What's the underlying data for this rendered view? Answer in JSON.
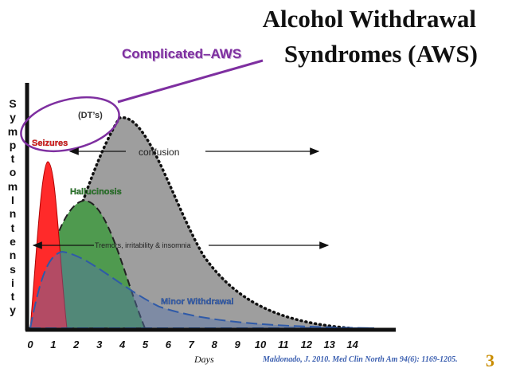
{
  "title": {
    "line1": "Alcohol Withdrawal",
    "line2": "Syndromes (AWS)"
  },
  "complicated_label": "Complicated–AWS",
  "dts_label": "(DT’s)",
  "y_axis_label": [
    "S",
    "y",
    "m",
    "p",
    "t",
    "o",
    "m",
    "I",
    "n",
    "t",
    "e",
    "n",
    "s",
    "i",
    "t",
    "y"
  ],
  "x_axis": {
    "label": "Days",
    "ticks": [
      "0",
      "1",
      "2",
      "3",
      "4",
      "5",
      "6",
      "7",
      "8",
      "9",
      "10",
      "11",
      "12",
      "13",
      "14"
    ]
  },
  "labels": {
    "seizures": "Seizures",
    "confusion": "confusion",
    "hallucinosis": "Hallucinosis",
    "tremors": "Tremors, irritability & insomnia",
    "minor": "Minor Withdrawal"
  },
  "citation": "Maldonado, J. 2010. Med Clin North Am 94(6): 1169-1205.",
  "page_number": "3",
  "colors": {
    "seizures": "#ff2a2a",
    "hallucinosis": "#4f9a4f",
    "dts": "#9e9e9e",
    "minor": "#4a6a9e",
    "complicated": "#7e2fa0",
    "citation": "#3b5fb0",
    "page_number": "#c98c00"
  }
}
